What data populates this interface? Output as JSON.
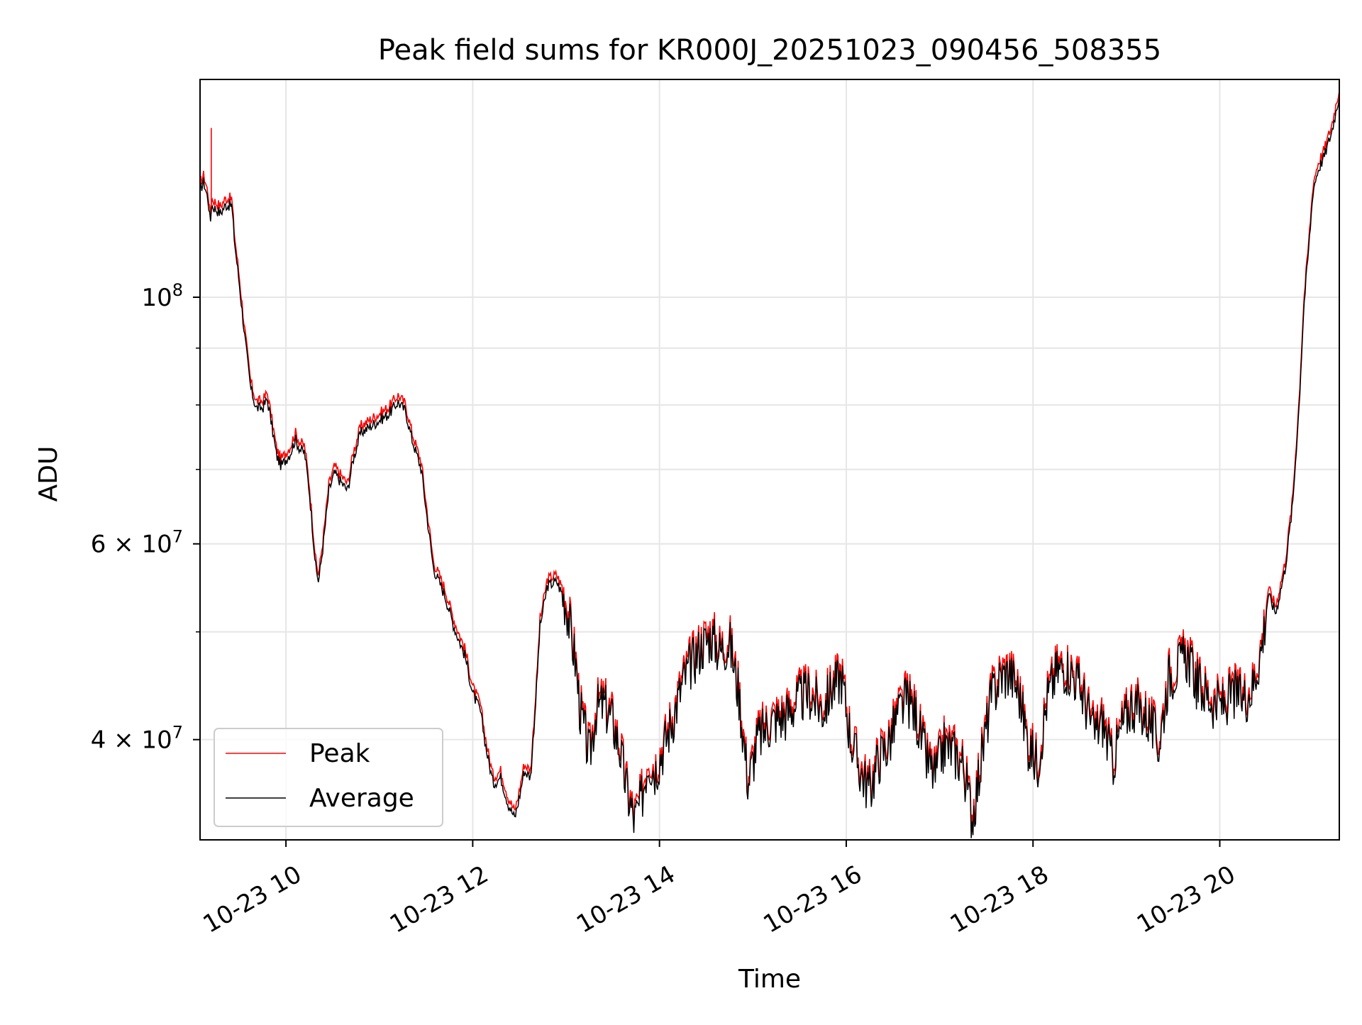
{
  "chart_data": {
    "type": "line",
    "title": "Peak field sums for KR000J_20251023_090456_508355",
    "xlabel": "Time",
    "ylabel": "ADU",
    "yscale": "log",
    "grid": true,
    "legend_position": "bottom-left",
    "colors": {
      "peak": "#ff0000",
      "average": "#000000",
      "grid": "#e6e6e6"
    },
    "xlim": [
      9.08,
      21.28
    ],
    "ylim": [
      32500000,
      157000000
    ],
    "x_ticks": [
      {
        "value": 10,
        "label": "10-23 10"
      },
      {
        "value": 12,
        "label": "10-23 12"
      },
      {
        "value": 14,
        "label": "10-23 14"
      },
      {
        "value": 16,
        "label": "10-23 16"
      },
      {
        "value": 18,
        "label": "10-23 18"
      },
      {
        "value": 20,
        "label": "10-23 20"
      }
    ],
    "y_ticks": [
      {
        "value": 100000000,
        "base": "10",
        "exp": "8"
      },
      {
        "value": 60000000,
        "base": "6 × 10",
        "exp": "7"
      },
      {
        "value": 40000000,
        "base": "4 × 10",
        "exp": "7"
      }
    ],
    "y_minor_ticks": [
      50000000,
      70000000,
      80000000,
      90000000
    ],
    "series": [
      {
        "name": "Peak",
        "color": "#ff0000",
        "spike": {
          "x": 9.2,
          "value": 142000000
        }
      },
      {
        "name": "Average",
        "color": "#000000"
      }
    ],
    "average_profile": [
      [
        9.08,
        125000000
      ],
      [
        9.12,
        127000000
      ],
      [
        9.17,
        122000000
      ],
      [
        9.19,
        116000000
      ],
      [
        9.2,
        121000000
      ],
      [
        9.3,
        119000000
      ],
      [
        9.35,
        121000000
      ],
      [
        9.42,
        121000000
      ],
      [
        9.45,
        112000000
      ],
      [
        9.5,
        103000000
      ],
      [
        9.56,
        92000000
      ],
      [
        9.62,
        83000000
      ],
      [
        9.68,
        79500000
      ],
      [
        9.75,
        79500000
      ],
      [
        9.8,
        81000000
      ],
      [
        9.85,
        76500000
      ],
      [
        9.9,
        72000000
      ],
      [
        9.95,
        70500000
      ],
      [
        10.05,
        72500000
      ],
      [
        10.1,
        74500000
      ],
      [
        10.15,
        73000000
      ],
      [
        10.2,
        72500000
      ],
      [
        10.25,
        67000000
      ],
      [
        10.32,
        57000000
      ],
      [
        10.35,
        55500000
      ],
      [
        10.4,
        60000000
      ],
      [
        10.46,
        67000000
      ],
      [
        10.52,
        69500000
      ],
      [
        10.6,
        68000000
      ],
      [
        10.66,
        67000000
      ],
      [
        10.72,
        71500000
      ],
      [
        10.8,
        75500000
      ],
      [
        10.95,
        77000000
      ],
      [
        11.1,
        78500000
      ],
      [
        11.2,
        80500000
      ],
      [
        11.28,
        79000000
      ],
      [
        11.35,
        74500000
      ],
      [
        11.45,
        70000000
      ],
      [
        11.5,
        64500000
      ],
      [
        11.58,
        57000000
      ],
      [
        11.7,
        54000000
      ],
      [
        11.8,
        50500000
      ],
      [
        11.92,
        47500000
      ],
      [
        12.0,
        44000000
      ],
      [
        12.08,
        42500000
      ],
      [
        12.15,
        39000000
      ],
      [
        12.22,
        36500000
      ],
      [
        12.3,
        37000000
      ],
      [
        12.38,
        35000000
      ],
      [
        12.45,
        34000000
      ],
      [
        12.5,
        35500000
      ],
      [
        12.55,
        37500000
      ],
      [
        12.62,
        37000000
      ],
      [
        12.68,
        44000000
      ],
      [
        12.72,
        50500000
      ],
      [
        12.8,
        55000000
      ],
      [
        12.9,
        55500000
      ],
      [
        13.0,
        53000000
      ],
      [
        13.1,
        47000000
      ],
      [
        13.15,
        42500000
      ],
      [
        13.2,
        40500000
      ],
      [
        13.25,
        38500000
      ],
      [
        13.32,
        42500000
      ],
      [
        13.4,
        43000000
      ],
      [
        13.5,
        41500000
      ],
      [
        13.58,
        39000000
      ],
      [
        13.65,
        36000000
      ],
      [
        13.73,
        33800000
      ],
      [
        13.8,
        35000000
      ],
      [
        13.88,
        38500000
      ],
      [
        13.95,
        37500000
      ],
      [
        14.05,
        39500000
      ],
      [
        14.15,
        42000000
      ],
      [
        14.25,
        45000000
      ],
      [
        14.35,
        47000000
      ],
      [
        14.45,
        48500000
      ],
      [
        14.55,
        49500000
      ],
      [
        14.65,
        48000000
      ],
      [
        14.75,
        49000000
      ],
      [
        14.85,
        44000000
      ],
      [
        14.95,
        36500000
      ],
      [
        15.05,
        40000000
      ],
      [
        15.2,
        41500000
      ],
      [
        15.35,
        42000000
      ],
      [
        15.5,
        43500000
      ],
      [
        15.6,
        44000000
      ],
      [
        15.75,
        42500000
      ],
      [
        15.85,
        44500000
      ],
      [
        15.95,
        45500000
      ],
      [
        16.05,
        40000000
      ],
      [
        16.15,
        37500000
      ],
      [
        16.25,
        36000000
      ],
      [
        16.35,
        38500000
      ],
      [
        16.45,
        39500000
      ],
      [
        16.55,
        42000000
      ],
      [
        16.65,
        43500000
      ],
      [
        16.75,
        42000000
      ],
      [
        16.85,
        38500000
      ],
      [
        16.95,
        37000000
      ],
      [
        17.05,
        39500000
      ],
      [
        17.15,
        39000000
      ],
      [
        17.25,
        38000000
      ],
      [
        17.35,
        34000000
      ],
      [
        17.45,
        38500000
      ],
      [
        17.55,
        43500000
      ],
      [
        17.65,
        45500000
      ],
      [
        17.75,
        46000000
      ],
      [
        17.85,
        44000000
      ],
      [
        17.95,
        39500000
      ],
      [
        18.05,
        38000000
      ],
      [
        18.15,
        43500000
      ],
      [
        18.25,
        46000000
      ],
      [
        18.35,
        46500000
      ],
      [
        18.45,
        45500000
      ],
      [
        18.55,
        43500000
      ],
      [
        18.65,
        40500000
      ],
      [
        18.75,
        41500000
      ],
      [
        18.85,
        38000000
      ],
      [
        18.95,
        41000000
      ],
      [
        19.05,
        43000000
      ],
      [
        19.15,
        42500000
      ],
      [
        19.25,
        41500000
      ],
      [
        19.35,
        39500000
      ],
      [
        19.45,
        45500000
      ],
      [
        19.55,
        46500000
      ],
      [
        19.65,
        47500000
      ],
      [
        19.75,
        45000000
      ],
      [
        19.85,
        44000000
      ],
      [
        19.95,
        43000000
      ],
      [
        20.05,
        43000000
      ],
      [
        20.15,
        44000000
      ],
      [
        20.25,
        43500000
      ],
      [
        20.35,
        44500000
      ],
      [
        20.45,
        48500000
      ],
      [
        20.52,
        54000000
      ],
      [
        20.6,
        52000000
      ],
      [
        20.7,
        57000000
      ],
      [
        20.78,
        65000000
      ],
      [
        20.85,
        80000000
      ],
      [
        20.9,
        98000000
      ],
      [
        20.95,
        110000000
      ],
      [
        21.0,
        125000000
      ],
      [
        21.05,
        130000000
      ],
      [
        21.12,
        134000000
      ],
      [
        21.2,
        141000000
      ],
      [
        21.28,
        152000000
      ]
    ]
  },
  "legend": {
    "peak_label": "Peak",
    "average_label": "Average"
  }
}
